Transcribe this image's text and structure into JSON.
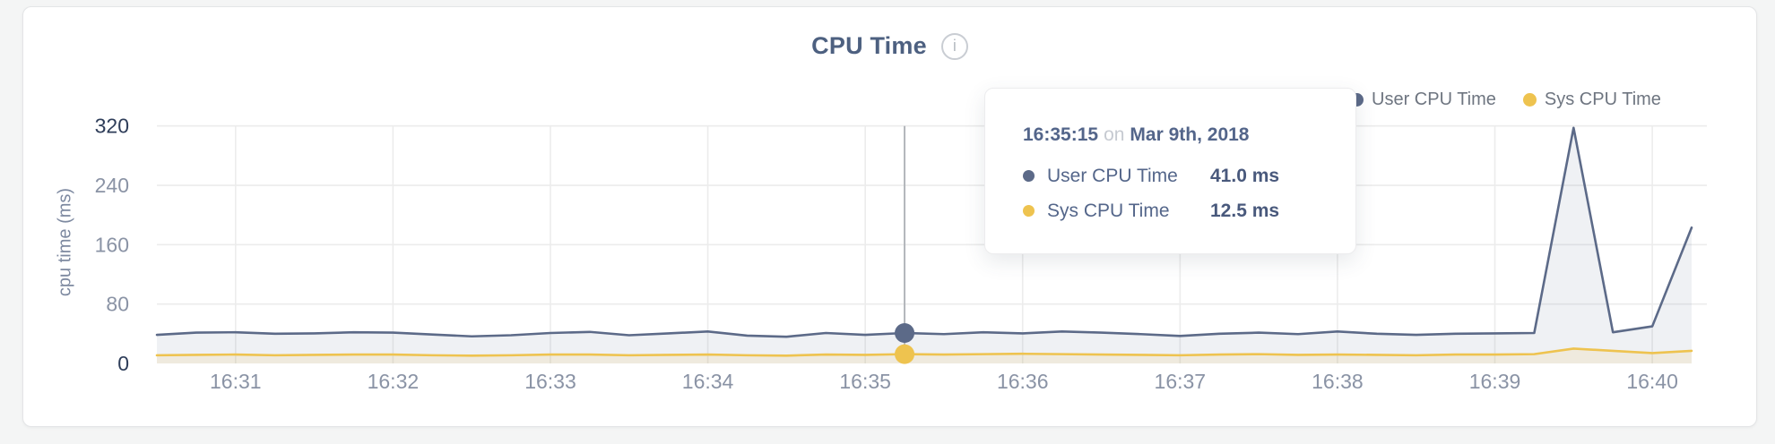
{
  "card": {
    "title": "CPU Time",
    "info_icon_glyph": "i"
  },
  "legend": {
    "items": [
      {
        "label": "User CPU Time",
        "color": "#5c6a88"
      },
      {
        "label": "Sys CPU Time",
        "color": "#eec34f"
      }
    ]
  },
  "tooltip": {
    "time": "16:35:15",
    "connector": "on",
    "date": "Mar 9th, 2018",
    "rows": [
      {
        "label": "User CPU Time",
        "value": "41.0 ms",
        "color": "#5c6a88"
      },
      {
        "label": "Sys CPU Time",
        "value": "12.5 ms",
        "color": "#eec34f"
      }
    ]
  },
  "chart_data": {
    "type": "line",
    "title": "CPU Time",
    "xlabel": "",
    "ylabel": "cpu time (ms)",
    "ylim": [
      0,
      320
    ],
    "yticks": [
      320,
      240,
      160,
      80,
      0
    ],
    "xticks": [
      "16:31",
      "16:32",
      "16:33",
      "16:34",
      "16:35",
      "16:36",
      "16:37",
      "16:38",
      "16:39",
      "16:40"
    ],
    "grid": true,
    "legend_position": "top-right",
    "x_times": [
      "16:30:30",
      "16:30:45",
      "16:31:00",
      "16:31:15",
      "16:31:30",
      "16:31:45",
      "16:32:00",
      "16:32:15",
      "16:32:30",
      "16:32:45",
      "16:33:00",
      "16:33:15",
      "16:33:30",
      "16:33:45",
      "16:34:00",
      "16:34:15",
      "16:34:30",
      "16:34:45",
      "16:35:00",
      "16:35:15",
      "16:35:30",
      "16:35:45",
      "16:36:00",
      "16:36:15",
      "16:36:30",
      "16:36:45",
      "16:37:00",
      "16:37:15",
      "16:37:30",
      "16:37:45",
      "16:38:00",
      "16:38:15",
      "16:38:30",
      "16:38:45",
      "16:39:00",
      "16:39:15",
      "16:39:30",
      "16:39:45",
      "16:40:00",
      "16:40:15"
    ],
    "series": [
      {
        "name": "User CPU Time",
        "color": "#5c6a88",
        "fill": "rgba(101,115,147,0.10)",
        "unit": "ms",
        "values": [
          38.5,
          41.5,
          42,
          40,
          40.5,
          42,
          41.5,
          39,
          36.5,
          38,
          41,
          42.5,
          38,
          40.5,
          43,
          37.5,
          36,
          41,
          38.5,
          41,
          39.5,
          42,
          40.5,
          43,
          41.5,
          39.5,
          37,
          40,
          41.5,
          39.5,
          43,
          40,
          38.5,
          40,
          40.5,
          41,
          317.5,
          42,
          50,
          183
        ]
      },
      {
        "name": "Sys CPU Time",
        "color": "#eec34f",
        "fill": "rgba(238,195,81,0.13)",
        "unit": "ms",
        "values": [
          11,
          11.5,
          12,
          11,
          11.5,
          12,
          12,
          11,
          10.5,
          11,
          12,
          12,
          11,
          11.5,
          12,
          11,
          10.5,
          12,
          11.5,
          12.5,
          12,
          12.5,
          13,
          12.5,
          12,
          11.5,
          11,
          12,
          12.5,
          11.5,
          12,
          11.5,
          11,
          12,
          12,
          12.5,
          20,
          17,
          14,
          17
        ]
      }
    ],
    "hover": {
      "index": 19,
      "time": "16:35:15",
      "values": [
        41.0,
        12.5
      ]
    },
    "colors": {
      "grid": "#ececec",
      "tick": "#8a93a5",
      "tick_strong": "#2e3d59",
      "hover_line": "#b3b6bb"
    }
  }
}
